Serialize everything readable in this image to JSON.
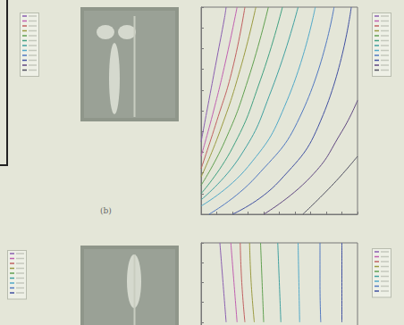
{
  "page": {
    "label": "(b)"
  },
  "chart_data": [
    {
      "type": "line",
      "xlim": [
        0,
        10
      ],
      "ylim": [
        0,
        10
      ],
      "xticks": [
        0,
        1,
        2,
        3,
        4,
        5,
        6,
        7,
        8,
        9,
        10
      ],
      "yticks": [
        0,
        1,
        2,
        3,
        4,
        5,
        6,
        7,
        8,
        9,
        10
      ],
      "grid": false,
      "tick_labels": false,
      "series": [
        {
          "color": "#8a5fb0",
          "x": [
            0,
            0.5,
            1,
            1.5,
            1.6
          ],
          "values": [
            3.5,
            5.5,
            7.5,
            9.5,
            10
          ]
        },
        {
          "color": "#c060b0",
          "x": [
            0,
            0.8,
            1.6,
            2.3
          ],
          "values": [
            2.8,
            5,
            7.5,
            10
          ]
        },
        {
          "color": "#c06060",
          "x": [
            0,
            1,
            2,
            2.8
          ],
          "values": [
            2.2,
            4.5,
            7,
            10
          ]
        },
        {
          "color": "#9a9a40",
          "x": [
            0,
            1.2,
            2.5,
            3.5
          ],
          "values": [
            1.8,
            4,
            7,
            10
          ]
        },
        {
          "color": "#60a050",
          "x": [
            0,
            1.5,
            3,
            4.3
          ],
          "values": [
            1.4,
            3.5,
            6.5,
            10
          ]
        },
        {
          "color": "#40a080",
          "x": [
            0,
            2,
            3.8,
            5.2
          ],
          "values": [
            1.0,
            3.2,
            6.5,
            10
          ]
        },
        {
          "color": "#40a0a0",
          "x": [
            0,
            2.5,
            4.5,
            6.2
          ],
          "values": [
            0.7,
            2.8,
            6,
            10
          ]
        },
        {
          "color": "#50a8c8",
          "x": [
            0,
            3,
            5.5,
            7.3
          ],
          "values": [
            0.4,
            2.3,
            5.5,
            10
          ]
        },
        {
          "color": "#5078c0",
          "x": [
            0.5,
            3.5,
            6.5,
            8.5
          ],
          "values": [
            0,
            1.8,
            5,
            10
          ]
        },
        {
          "color": "#4050a0",
          "x": [
            2,
            5,
            7.8,
            9.6
          ],
          "values": [
            0,
            1.6,
            4.8,
            10
          ]
        },
        {
          "color": "#604880",
          "x": [
            4,
            7,
            9,
            10
          ],
          "values": [
            0,
            1.8,
            4,
            5.5
          ]
        },
        {
          "color": "#505060",
          "x": [
            6.5,
            8.5,
            10
          ],
          "values": [
            0,
            1.5,
            2.8
          ]
        }
      ]
    },
    {
      "type": "line",
      "xlim": [
        0,
        10
      ],
      "ylim": [
        0,
        10
      ],
      "xticks": [
        0,
        1,
        2,
        3,
        4,
        5,
        6,
        7,
        8,
        9,
        10
      ],
      "yticks": [
        0,
        1,
        2,
        3,
        4,
        5,
        6,
        7,
        8,
        9,
        10
      ],
      "grid": false,
      "tick_labels": false,
      "series": [
        {
          "color": "#8a5fb0",
          "x": [
            1.2,
            1.4,
            1.6
          ],
          "values": [
            10,
            8,
            6
          ]
        },
        {
          "color": "#c060b0",
          "x": [
            1.9,
            2.1,
            2.3
          ],
          "values": [
            10,
            8,
            6
          ]
        },
        {
          "color": "#c06060",
          "x": [
            2.5,
            2.6,
            2.8
          ],
          "values": [
            10,
            8,
            6
          ]
        },
        {
          "color": "#9a9a40",
          "x": [
            3.1,
            3.2,
            3.4
          ],
          "values": [
            10,
            8,
            6
          ]
        },
        {
          "color": "#60a050",
          "x": [
            3.8,
            3.9,
            4.0
          ],
          "values": [
            10,
            8,
            6
          ]
        },
        {
          "color": "#40a0a0",
          "x": [
            4.9,
            5.0,
            5.1
          ],
          "values": [
            10,
            8,
            6
          ]
        },
        {
          "color": "#50a8c8",
          "x": [
            6.2,
            6.25,
            6.3
          ],
          "values": [
            10,
            8,
            6
          ]
        },
        {
          "color": "#5078c0",
          "x": [
            7.6,
            7.6,
            7.65
          ],
          "values": [
            10,
            8,
            6
          ]
        },
        {
          "color": "#4050a0",
          "x": [
            9.0,
            9.0,
            9.0
          ],
          "values": [
            10,
            8,
            6
          ]
        }
      ]
    }
  ]
}
